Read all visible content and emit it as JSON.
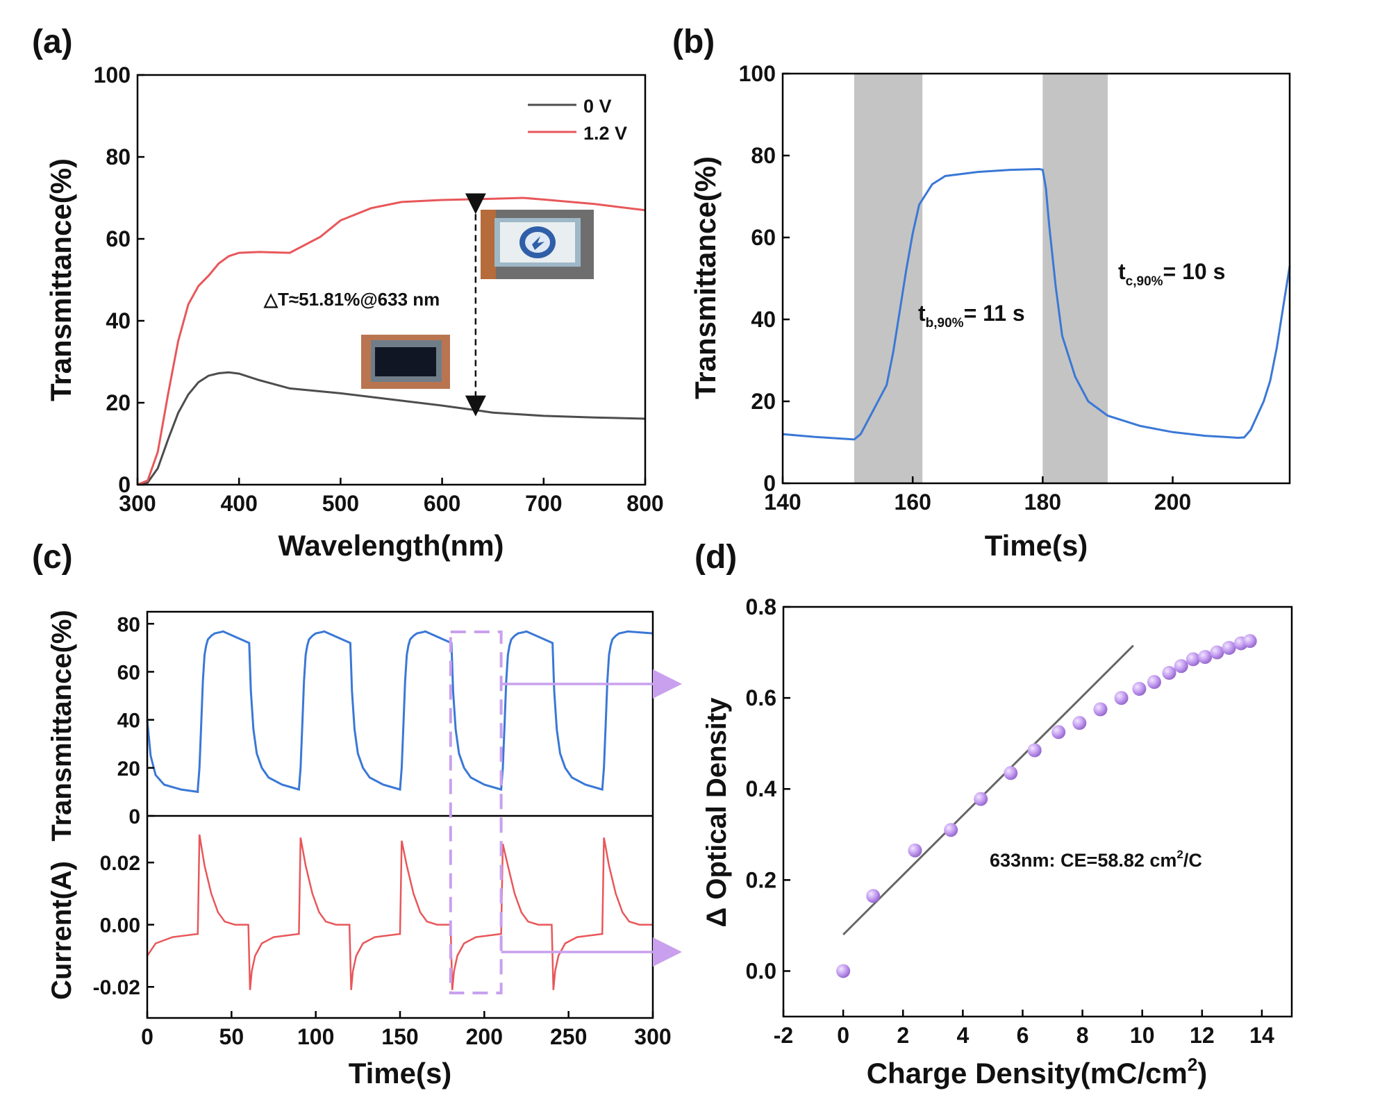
{
  "chart_data": [
    {
      "panel": "(a)",
      "type": "line",
      "xlabel": "Wavelength(nm)",
      "ylabel": "Transmittance(%)",
      "xlim": [
        300,
        800
      ],
      "ylim": [
        0,
        100
      ],
      "xticks": [
        300,
        400,
        500,
        600,
        700,
        800
      ],
      "yticks": [
        0,
        20,
        40,
        60,
        80,
        100
      ],
      "series": [
        {
          "name": "0 V",
          "color": "#4d4d4d",
          "x": [
            300,
            310,
            320,
            330,
            340,
            350,
            360,
            370,
            380,
            390,
            400,
            420,
            450,
            500,
            550,
            600,
            633,
            650,
            700,
            750,
            800
          ],
          "y": [
            0,
            0.5,
            4,
            11,
            17.5,
            22,
            25,
            26.6,
            27.2,
            27.4,
            27.1,
            25.5,
            23.5,
            22.3,
            20.8,
            19.3,
            18.2,
            17.6,
            16.8,
            16.4,
            16.1
          ]
        },
        {
          "name": "1.2 V",
          "color": "#e8575a",
          "x": [
            300,
            310,
            320,
            330,
            340,
            350,
            360,
            370,
            380,
            390,
            400,
            420,
            450,
            480,
            500,
            530,
            560,
            600,
            650,
            680,
            700,
            750,
            800
          ],
          "y": [
            0,
            1,
            8,
            22,
            35,
            44,
            48.5,
            51,
            54,
            55.8,
            56.6,
            56.8,
            56.6,
            60.5,
            64.5,
            67.5,
            69,
            69.5,
            69.8,
            70,
            69.6,
            68.5,
            67
          ]
        }
      ],
      "legend": [
        "0 V",
        "1.2 V"
      ],
      "annotation": "△T≈51.81%@633 nm",
      "arrow_x": 633,
      "arrow_y": [
        18.2,
        69.6
      ]
    },
    {
      "panel": "(b)",
      "type": "line",
      "xlabel": "Time(s)",
      "ylabel": "Transmittance(%)",
      "xlim": [
        140,
        218
      ],
      "ylim": [
        0,
        100
      ],
      "xticks": [
        140,
        160,
        180,
        200
      ],
      "yticks": [
        0,
        20,
        40,
        60,
        80,
        100
      ],
      "shaded": [
        [
          151,
          161.5
        ],
        [
          180,
          190
        ]
      ],
      "series": [
        {
          "name": "Transmittance",
          "color": "#3a78d6",
          "x": [
            140,
            145,
            150,
            151,
            152,
            154,
            156,
            157,
            158,
            159,
            160,
            161,
            162,
            163,
            165,
            170,
            175,
            179.5,
            180,
            180.5,
            181,
            182,
            183,
            185,
            187,
            190,
            195,
            200,
            205,
            208,
            210,
            211,
            212,
            214,
            215,
            216,
            217,
            218
          ],
          "y": [
            12,
            11.3,
            10.8,
            10.7,
            12,
            18,
            24,
            32,
            42,
            52,
            61,
            68,
            70.5,
            73,
            75,
            76,
            76.5,
            76.7,
            76.5,
            72,
            63,
            48,
            36,
            26,
            20,
            16.5,
            14,
            12.5,
            11.6,
            11.3,
            11.1,
            11.2,
            13,
            20,
            25,
            33,
            43,
            53
          ]
        }
      ],
      "annotations": [
        {
          "main": "t",
          "sub": "b,90%",
          "rest": "= 11 s"
        },
        {
          "main": "t",
          "sub": "c,90%",
          "rest": "= 10 s"
        }
      ]
    },
    {
      "panel": "(c)",
      "type": "line",
      "xlabel": "Time(s)",
      "xlim": [
        0,
        300
      ],
      "xticks": [
        0,
        50,
        100,
        150,
        200,
        250,
        300
      ],
      "top": {
        "ylabel": "Transmittance(%)",
        "ylim": [
          0,
          85
        ],
        "yticks": [
          0,
          20,
          40,
          60,
          80
        ],
        "color": "#3a78d6",
        "cycle_period": 60,
        "cycles": 5
      },
      "bottom": {
        "ylabel": "Current(A)",
        "ylim": [
          -0.03,
          0.035
        ],
        "yticks": [
          -0.02,
          0.0,
          0.02
        ],
        "ytick_labels": [
          "-0.02",
          "0.00",
          "0.02"
        ],
        "color": "#e8575a"
      },
      "highlight_window": [
        180,
        210
      ]
    },
    {
      "panel": "(d)",
      "type": "scatter",
      "xlabel": "Charge Density(mC/cm",
      "xlabel_sup": "2",
      "xlabel_end": ")",
      "ylabel": "Δ Optical Density",
      "xlim": [
        -2,
        15
      ],
      "ylim": [
        -0.1,
        0.8
      ],
      "xticks": [
        -2,
        0,
        2,
        4,
        6,
        8,
        10,
        12,
        14
      ],
      "yticks": [
        0.0,
        0.2,
        0.4,
        0.6,
        0.8
      ],
      "ytick_labels": [
        "0.0",
        "0.2",
        "0.4",
        "0.6",
        "0.8"
      ],
      "points": {
        "x": [
          0,
          1.0,
          2.4,
          3.6,
          4.6,
          5.6,
          6.4,
          7.2,
          7.9,
          8.6,
          9.3,
          9.9,
          10.4,
          10.9,
          11.3,
          11.7,
          12.1,
          12.5,
          12.9,
          13.3,
          13.6
        ],
        "y": [
          0,
          0.165,
          0.265,
          0.31,
          0.378,
          0.435,
          0.485,
          0.525,
          0.545,
          0.575,
          0.6,
          0.62,
          0.635,
          0.655,
          0.67,
          0.685,
          0.69,
          0.7,
          0.71,
          0.72,
          0.725
        ]
      },
      "fit_line": {
        "x": [
          0,
          9.7
        ],
        "y": [
          0.08,
          0.715
        ]
      },
      "annotation": "633nm: CE=58.82 cm",
      "annotation_sup": "2",
      "annotation_end": "/C",
      "point_color": "#c39bf0"
    }
  ]
}
